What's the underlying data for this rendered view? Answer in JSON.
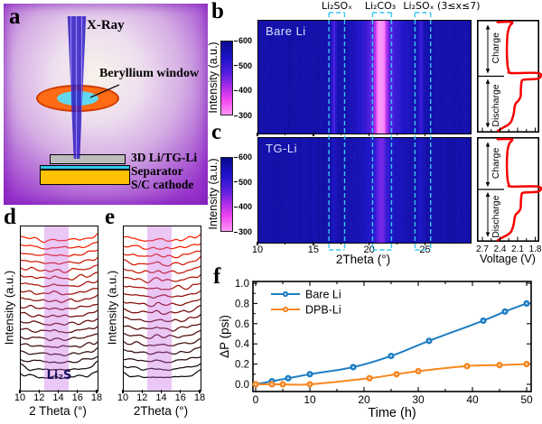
{
  "figure_label": {
    "a": "a",
    "b": "b",
    "c": "c",
    "d": "d",
    "e": "e",
    "f": "f"
  },
  "panel_a": {
    "xray_label": "X-Ray",
    "window_label": "Beryllium window",
    "layers": [
      {
        "label": "3D Li/TG-Li",
        "color": "#bcbcbc"
      },
      {
        "label": "Separator",
        "color": "#2fc9ea"
      },
      {
        "label": "S/C cathode",
        "color": "#ffc103"
      }
    ],
    "beam_color": "#3a22cc",
    "ring_color": "#ff6a14",
    "window_color": "#62d8ef"
  },
  "chart_data": [
    {
      "id": "b",
      "type": "heatmap",
      "title": "Bare Li",
      "xlabel": "2Theta (°)",
      "x_range": [
        10,
        29
      ],
      "x_ticks": [
        10,
        15,
        20,
        25
      ],
      "colorbar": {
        "label": "Intensity (a.u.)",
        "range": [
          300,
          600
        ],
        "ticks": [
          600,
          500,
          400,
          300
        ],
        "stops": [
          "#08088c",
          "#1c12c8",
          "#5a1ee1",
          "#aa2de9",
          "#f046f0",
          "#ff96f8"
        ],
        "stop_pos": [
          0,
          22,
          45,
          62,
          80,
          100
        ]
      },
      "base_level": 0.07,
      "bands": [
        {
          "center": 21.0,
          "sigma": 0.45,
          "peak": 0.75
        },
        {
          "center": 21.0,
          "sigma": 2.0,
          "peak": 0.4
        },
        {
          "center": 16.8,
          "sigma": 0.22,
          "peak": 0.3
        },
        {
          "center": 24.6,
          "sigma": 0.22,
          "peak": 0.26
        }
      ],
      "annotations": [
        {
          "label": "Li₂SOₓ",
          "x_start": 16.4,
          "x_end": 17.8
        },
        {
          "label": "Li₂CO₃",
          "x_start": 20.3,
          "x_end": 22.0
        },
        {
          "label": "Li₂SOₓ (3≤x≤7)",
          "x_start": 24.1,
          "x_end": 25.5
        }
      ],
      "annotation_color": "#38c6f2"
    },
    {
      "id": "c",
      "type": "heatmap",
      "title": "TG-Li",
      "xlabel": "2Theta (°)",
      "x_range": [
        10,
        29
      ],
      "x_ticks": [
        10,
        15,
        20,
        25
      ],
      "colorbar": {
        "label": "Intensity (a.u.)",
        "range": [
          300,
          600
        ],
        "ticks": [
          600,
          500,
          400,
          300
        ],
        "stops": [
          "#08088c",
          "#1c12c8",
          "#5a1ee1",
          "#aa2de9",
          "#f046f0",
          "#ff96f8"
        ],
        "stop_pos": [
          0,
          22,
          45,
          62,
          80,
          100
        ]
      },
      "base_level": 0.07,
      "bands": [
        {
          "center": 21.0,
          "sigma": 0.5,
          "peak": 0.3
        },
        {
          "center": 21.0,
          "sigma": 2.0,
          "peak": 0.15
        },
        {
          "center": 16.8,
          "sigma": 0.22,
          "peak": 0.12
        },
        {
          "center": 24.6,
          "sigma": 0.22,
          "peak": 0.14
        }
      ]
    },
    {
      "id": "voltage",
      "type": "line",
      "xlabel": "Voltage (V)",
      "x_ticks": [
        "2.7",
        "2.4",
        "2.1",
        "1.8"
      ],
      "sections": [
        "Charge",
        "Discharge"
      ],
      "color": "#f50000",
      "path_norm": [
        [
          0.33,
          0.02
        ],
        [
          0.56,
          0.02
        ],
        [
          0.52,
          0.06
        ],
        [
          0.49,
          0.13
        ],
        [
          0.48,
          0.28
        ],
        [
          0.49,
          0.4
        ],
        [
          0.51,
          0.45
        ],
        [
          0.55,
          0.472
        ],
        [
          0.985,
          0.472
        ],
        [
          0.985,
          0.52
        ],
        [
          0.75,
          0.53
        ],
        [
          0.715,
          0.555
        ],
        [
          0.705,
          0.62
        ],
        [
          0.7,
          0.68
        ],
        [
          0.66,
          0.72
        ],
        [
          0.625,
          0.738
        ],
        [
          0.605,
          0.77
        ],
        [
          0.59,
          0.83
        ],
        [
          0.55,
          0.9
        ],
        [
          0.5,
          0.93
        ],
        [
          0.4,
          0.962
        ],
        [
          0.335,
          0.985
        ]
      ]
    },
    {
      "id": "d",
      "type": "waterfall",
      "xlabel": "2 Theta (°)",
      "ylabel": "Intensity (a.u.)",
      "x_range": [
        10,
        18
      ],
      "x_ticks": [
        10,
        12,
        14,
        16,
        18
      ],
      "n_curves": 19,
      "seed": 7,
      "color_stops": [
        "#0d0d0d",
        "#7c0808",
        "#ff2200"
      ],
      "highlight": {
        "label": "Li₂S",
        "x_start": 12.4,
        "x_end": 15.0,
        "color": "#c45fe0",
        "label_color": "#17125f"
      }
    },
    {
      "id": "e",
      "type": "waterfall",
      "xlabel": "2Theta (°)",
      "ylabel": "Intensity (a.u.)",
      "x_range": [
        10,
        18
      ],
      "x_ticks": [
        10,
        12,
        14,
        16,
        18
      ],
      "n_curves": 18,
      "seed": 29,
      "color_stops": [
        "#0d0d0d",
        "#7c0808",
        "#ff2200"
      ],
      "highlight": {
        "label": "",
        "x_start": 12.4,
        "x_end": 15.0,
        "color": "#c45fe0",
        "label_color": "#17125f"
      }
    },
    {
      "id": "f",
      "type": "line",
      "xlabel": "Time (h)",
      "ylabel": "ΔP (psi)",
      "xlim": [
        0,
        52
      ],
      "ylim": [
        -0.07,
        1.02
      ],
      "x_ticks": [
        0,
        10,
        20,
        30,
        40,
        50
      ],
      "y_ticks": [
        "0.0",
        "0.2",
        "0.4",
        "0.6",
        "0.8",
        "1.0"
      ],
      "legend_position": "top-left",
      "series": [
        {
          "name": "Bare Li",
          "color": "#1f7ec2",
          "x": [
            0,
            3,
            6,
            10,
            18,
            25,
            32,
            42,
            46,
            50
          ],
          "y": [
            0.0,
            0.03,
            0.06,
            0.1,
            0.17,
            0.28,
            0.43,
            0.63,
            0.72,
            0.8
          ]
        },
        {
          "name": "DPB-Li",
          "color": "#f8871f",
          "x": [
            0,
            3,
            5,
            10,
            21,
            26,
            30,
            39,
            45,
            50
          ],
          "y": [
            0.0,
            0.0,
            0.0,
            0.0,
            0.06,
            0.1,
            0.13,
            0.18,
            0.19,
            0.2
          ]
        }
      ]
    }
  ]
}
